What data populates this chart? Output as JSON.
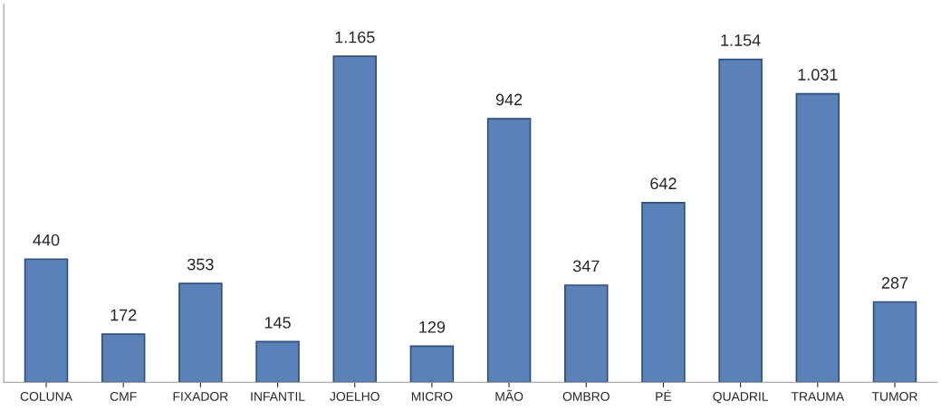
{
  "chart_data": {
    "type": "bar",
    "categories": [
      "COLUNA",
      "CMF",
      "FIXADOR",
      "INFANTIL",
      "JOELHO",
      "MICRO",
      "MÃO",
      "OMBRO",
      "PÉ",
      "QUADRIL",
      "TRAUMA",
      "TUMOR"
    ],
    "values": [
      440,
      172,
      353,
      145,
      1165,
      129,
      942,
      347,
      642,
      1154,
      1031,
      287
    ],
    "value_labels": [
      "440",
      "172",
      "353",
      "145",
      "1.165",
      "129",
      "942",
      "347",
      "642",
      "1.154",
      "1.031",
      "287"
    ],
    "color": "#5b82b8",
    "tick_labels": "x",
    "grid": false,
    "legend": false
  }
}
